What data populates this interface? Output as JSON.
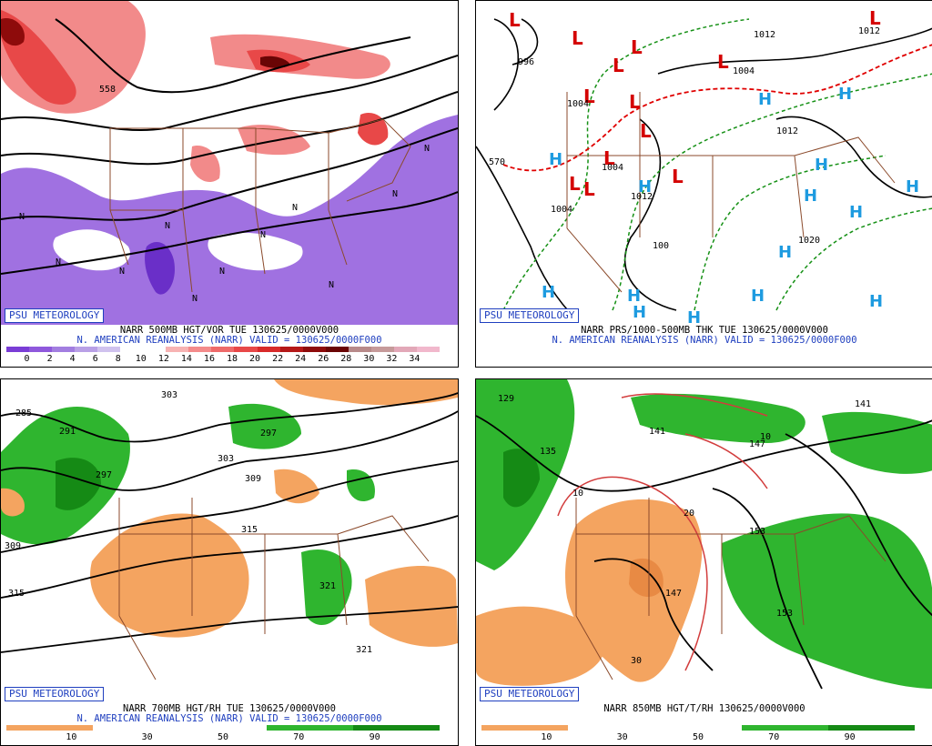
{
  "panels": [
    {
      "badge": "PSU METEOROLOGY",
      "title_line1": "NARR 500MB HGT/VOR TUE 130625/0000V000",
      "title_line2": "N. AMERICAN REANALYSIS (NARR) VALID = 130625/0000F000",
      "colorbar_ticks": [
        "0",
        "2",
        "4",
        "6",
        "8",
        "10",
        "12",
        "14",
        "16",
        "18",
        "20",
        "22",
        "24",
        "26",
        "28",
        "30",
        "32",
        "34"
      ],
      "colorbar_colors": [
        "#7a3dd6",
        "#8f58dc",
        "#a27ee0",
        "#b9a0e6",
        "#d0c2ee",
        "#ffffff",
        "#ffffff",
        "#f7b3b3",
        "#f48b8b",
        "#ee6a6a",
        "#e84848",
        "#d82a2a",
        "#b51818",
        "#8e0b0b",
        "#6a0505",
        "#b88a8a",
        "#c69a9a",
        "#e2a8b8",
        "#f1b8cc"
      ],
      "map_labels": [
        "558",
        "N",
        "N",
        "N",
        "N",
        "N",
        "N",
        "N",
        "N",
        "N",
        "N",
        "N"
      ]
    },
    {
      "badge": "PSU METEOROLOGY",
      "title_line1": "NARR PRS/1000-500MB THK TUE 130625/0000V000",
      "title_line2": "N. AMERICAN REANALYSIS (NARR) VALID = 130625/0000F000",
      "low_marker": "L",
      "high_marker": "H",
      "map_labels": [
        "996",
        "1012",
        "1004",
        "1004",
        "1004",
        "1004",
        "1012",
        "1012",
        "1020",
        "1012",
        "100",
        "570"
      ]
    },
    {
      "badge": "PSU METEOROLOGY",
      "title_line1": "NARR 700MB HGT/RH TUE 130625/0000V000",
      "title_line2": "N. AMERICAN REANALYSIS (NARR) VALID = 130625/0000F000",
      "colorbar_ticks": [
        "10",
        "30",
        "50",
        "70",
        "90"
      ],
      "colorbar_colors": [
        "#f4a460",
        "#f4a460",
        "#ffffff",
        "#ffffff",
        "#ffffff",
        "#ffffff",
        "#2fb52f",
        "#2fb52f",
        "#158a15",
        "#158a15"
      ],
      "map_labels": [
        "285",
        "291",
        "297",
        "303",
        "297",
        "303",
        "309",
        "309",
        "315",
        "315",
        "321",
        "321"
      ]
    },
    {
      "badge": "PSU METEOROLOGY",
      "title_line1": "NARR 850MB HGT/T/RH 130625/0000V000",
      "colorbar_ticks": [
        "10",
        "30",
        "50",
        "70",
        "90"
      ],
      "colorbar_colors": [
        "#f4a460",
        "#f4a460",
        "#ffffff",
        "#ffffff",
        "#ffffff",
        "#ffffff",
        "#2fb52f",
        "#2fb52f",
        "#158a15",
        "#158a15"
      ],
      "map_labels": [
        "129",
        "135",
        "141",
        "141",
        "147",
        "147",
        "153",
        "153",
        "10",
        "10",
        "20",
        "30"
      ]
    }
  ],
  "colors": {
    "badge_blue": "#1f3fbf",
    "state_lines": "#8b4a2b",
    "vort_pos": "#e84848",
    "vort_neg": "#8f58dc",
    "rh_dry": "#f4a460",
    "rh_moist": "#2fb52f",
    "thk_red": "#e00000",
    "thk_green": "#169116",
    "temp_red": "#d23c3c"
  }
}
